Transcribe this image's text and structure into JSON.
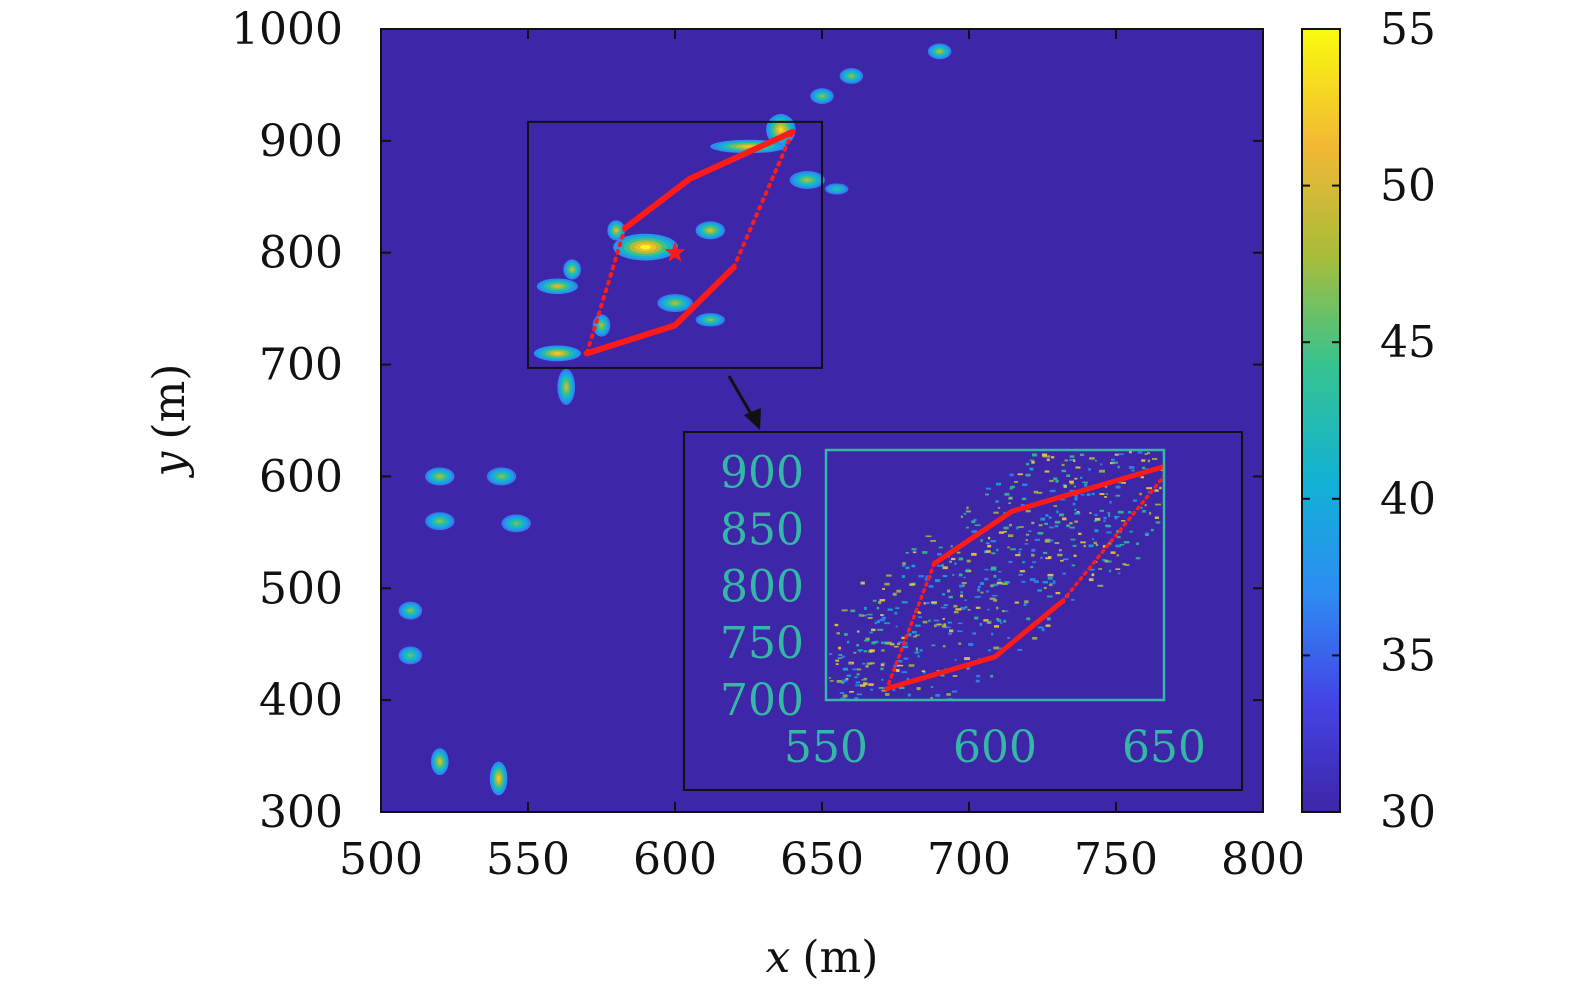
{
  "chart_data": {
    "type": "heatmap",
    "title": "",
    "xlabel_var": "x",
    "xlabel_unit": "(m)",
    "ylabel_var": "y",
    "ylabel_unit": "(m)",
    "xlim": [
      500,
      800
    ],
    "ylim": [
      300,
      1000
    ],
    "xticks": [
      "500",
      "550",
      "600",
      "650",
      "700",
      "750",
      "800"
    ],
    "yticks": [
      "300",
      "400",
      "500",
      "600",
      "700",
      "800",
      "900",
      "1000"
    ],
    "grid": false,
    "colormap": "parula",
    "background_color": "#3e26a8",
    "colorbar": {
      "range": [
        30,
        55
      ],
      "ticks": [
        "30",
        "35",
        "40",
        "45",
        "50",
        "55"
      ]
    },
    "hotspots": [
      {
        "x": 690,
        "y": 980,
        "dx": 4,
        "dy": 7,
        "peak": 48
      },
      {
        "x": 660,
        "y": 958,
        "dx": 4,
        "dy": 7,
        "peak": 47
      },
      {
        "x": 650,
        "y": 940,
        "dx": 4,
        "dy": 7,
        "peak": 47
      },
      {
        "x": 520,
        "y": 600,
        "dx": 5,
        "dy": 8,
        "peak": 48
      },
      {
        "x": 541,
        "y": 600,
        "dx": 5,
        "dy": 8,
        "peak": 47
      },
      {
        "x": 520,
        "y": 560,
        "dx": 5,
        "dy": 8,
        "peak": 47
      },
      {
        "x": 546,
        "y": 558,
        "dx": 5,
        "dy": 8,
        "peak": 46
      },
      {
        "x": 510,
        "y": 480,
        "dx": 4,
        "dy": 8,
        "peak": 47
      },
      {
        "x": 510,
        "y": 440,
        "dx": 4,
        "dy": 8,
        "peak": 46
      },
      {
        "x": 520,
        "y": 345,
        "dx": 3,
        "dy": 12,
        "peak": 50
      },
      {
        "x": 540,
        "y": 330,
        "dx": 3,
        "dy": 15,
        "peak": 52
      },
      {
        "x": 560,
        "y": 770,
        "dx": 7,
        "dy": 7,
        "peak": 50
      },
      {
        "x": 565,
        "y": 785,
        "dx": 3,
        "dy": 9,
        "peak": 49
      },
      {
        "x": 560,
        "y": 710,
        "dx": 8,
        "dy": 7,
        "peak": 52
      },
      {
        "x": 563,
        "y": 680,
        "dx": 3,
        "dy": 16,
        "peak": 49
      },
      {
        "x": 575,
        "y": 735,
        "dx": 3,
        "dy": 10,
        "peak": 48
      },
      {
        "x": 590,
        "y": 805,
        "dx": 11,
        "dy": 12,
        "peak": 55
      },
      {
        "x": 580,
        "y": 820,
        "dx": 3,
        "dy": 9,
        "peak": 50
      },
      {
        "x": 612,
        "y": 820,
        "dx": 5,
        "dy": 8,
        "peak": 50
      },
      {
        "x": 600,
        "y": 755,
        "dx": 6,
        "dy": 8,
        "peak": 48
      },
      {
        "x": 612,
        "y": 740,
        "dx": 5,
        "dy": 6,
        "peak": 47
      },
      {
        "x": 625,
        "y": 895,
        "dx": 13,
        "dy": 6,
        "peak": 52
      },
      {
        "x": 636,
        "y": 910,
        "dx": 5,
        "dy": 14,
        "peak": 53
      },
      {
        "x": 645,
        "y": 865,
        "dx": 6,
        "dy": 8,
        "peak": 48
      },
      {
        "x": 655,
        "y": 857,
        "dx": 4,
        "dy": 5,
        "peak": 44
      }
    ],
    "star": {
      "x": 600,
      "y": 800
    },
    "trajectory": {
      "outer": [
        [
          570,
          710
        ],
        [
          600,
          735
        ],
        [
          620,
          787
        ],
        [
          640,
          908
        ],
        [
          625,
          870
        ],
        [
          605,
          866
        ],
        [
          583,
          822
        ],
        [
          570,
          710
        ]
      ],
      "solid_segments": [
        [
          [
            570,
            710
          ],
          [
            600,
            735
          ]
        ],
        [
          [
            600,
            735
          ],
          [
            620,
            787
          ]
        ],
        [
          [
            640,
            908
          ],
          [
            605,
            866
          ]
        ],
        [
          [
            605,
            866
          ],
          [
            583,
            822
          ]
        ]
      ],
      "dotted_segments": [
        [
          [
            620,
            787
          ],
          [
            640,
            908
          ]
        ],
        [
          [
            583,
            822
          ],
          [
            570,
            710
          ]
        ]
      ]
    },
    "zoom_box": {
      "x": [
        550,
        650
      ],
      "y": [
        697,
        917
      ]
    },
    "inset": {
      "xlim": [
        550,
        650
      ],
      "ylim": [
        700,
        920
      ],
      "xticks": [
        "550",
        "600",
        "650"
      ],
      "yticks": [
        "700",
        "750",
        "800",
        "850",
        "900"
      ],
      "tick_color": "#35b7a6",
      "trajectory_solid": [
        [
          [
            568,
            710
          ],
          [
            600,
            738
          ],
          [
            620,
            787
          ]
        ],
        [
          [
            653,
            908
          ],
          [
            605,
            866
          ],
          [
            582,
            820
          ]
        ]
      ],
      "trajectory_dotted": [
        [
          [
            620,
            787
          ],
          [
            653,
            908
          ]
        ],
        [
          [
            582,
            820
          ],
          [
            568,
            710
          ]
        ]
      ]
    }
  }
}
